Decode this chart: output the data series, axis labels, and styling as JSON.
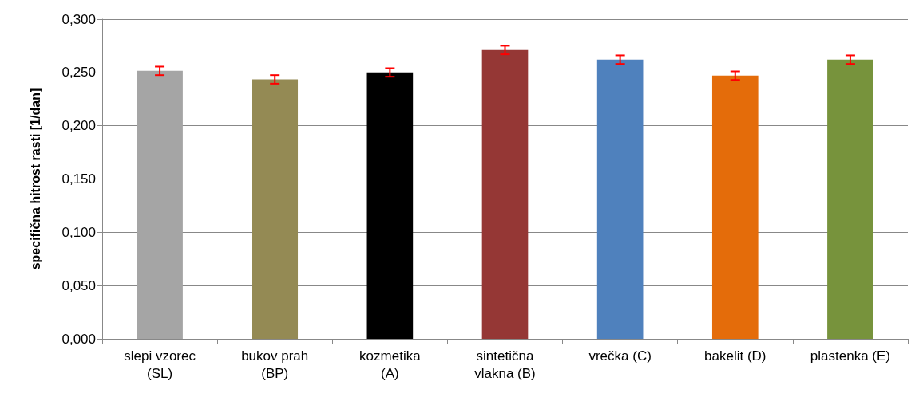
{
  "chart_data": {
    "type": "bar",
    "ylabel": "specifična hitrost rasti [1/dan]",
    "categories": [
      "slepi vzorec\n(SL)",
      "bukov prah\n(BP)",
      "kozmetika\n(A)",
      "sintetična\nvlakna (B)",
      "vrečka (C)",
      "bakelit (D)",
      "plastenka (E)"
    ],
    "values": [
      0.2515,
      0.2435,
      0.25,
      0.271,
      0.262,
      0.247,
      0.262
    ],
    "colors": [
      "#a5a5a5",
      "#948a54",
      "#000000",
      "#953735",
      "#4f81bd",
      "#e46c0a",
      "#77933c"
    ],
    "errors": [
      0.004,
      0.004,
      0.004,
      0.004,
      0.004,
      0.004,
      0.004
    ],
    "ylim": [
      0,
      0.3
    ],
    "yticks": [
      {
        "value": 0,
        "label": "0,000"
      },
      {
        "value": 0.05,
        "label": "0,050"
      },
      {
        "value": 0.1,
        "label": "0,100"
      },
      {
        "value": 0.15,
        "label": "0,150"
      },
      {
        "value": 0.2,
        "label": "0,200"
      },
      {
        "value": 0.25,
        "label": "0,250"
      },
      {
        "value": 0.3,
        "label": "0,300"
      }
    ],
    "grid": "y"
  }
}
